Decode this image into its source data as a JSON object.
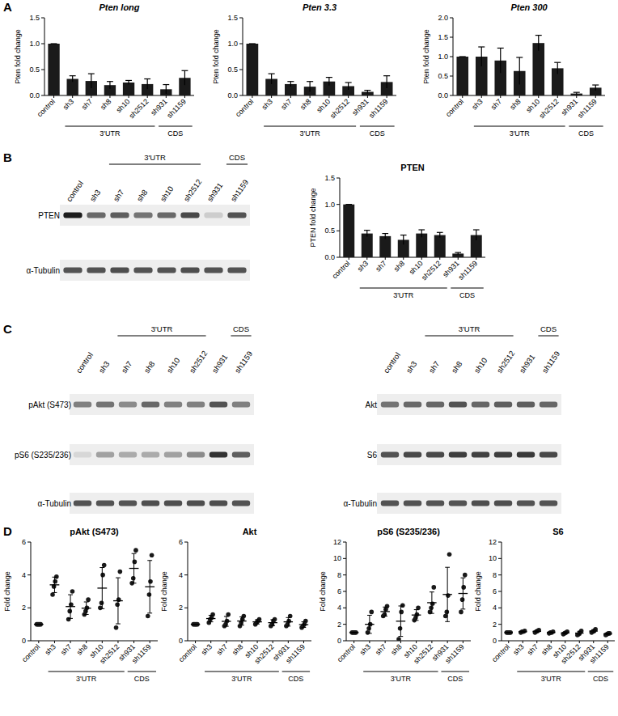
{
  "chart_data": [
    {
      "type": "bar",
      "title": "Pten long",
      "y_label": "Pten fold change",
      "categories": [
        "control",
        "sh3",
        "sh7",
        "sh8",
        "sh10",
        "sh2512",
        "sh931",
        "sh1159"
      ],
      "values": [
        1.0,
        0.32,
        0.28,
        0.2,
        0.25,
        0.22,
        0.12,
        0.34
      ],
      "error": [
        0,
        0.06,
        0.14,
        0.07,
        0.04,
        0.1,
        0.09,
        0.14
      ],
      "color": "#1a1a1a",
      "ylim": [
        0,
        1.5
      ],
      "yticks": [
        {
          "value": 0,
          "label": "0.0"
        },
        {
          "value": 0.5,
          "label": "0.5"
        },
        {
          "value": 1,
          "label": "1.0"
        },
        {
          "value": 1.5,
          "label": "1.5"
        }
      ],
      "groups": [
        {
          "label": "3'UTR",
          "from": "sh3",
          "to": "sh2512"
        },
        {
          "label": "CDS",
          "from": "sh931",
          "to": "sh1159"
        }
      ]
    },
    {
      "type": "bar",
      "title": "Pten 3.3",
      "y_label": "Pten fold change",
      "categories": [
        "control",
        "sh3",
        "sh7",
        "sh8",
        "sh10",
        "sh2512",
        "sh931",
        "sh1159"
      ],
      "values": [
        1.0,
        0.32,
        0.22,
        0.17,
        0.27,
        0.18,
        0.07,
        0.26
      ],
      "error": [
        0,
        0.1,
        0.05,
        0.1,
        0.08,
        0.07,
        0.03,
        0.12
      ],
      "color": "#1a1a1a",
      "ylim": [
        0,
        1.5
      ],
      "yticks": [
        {
          "value": 0,
          "label": "0.0"
        },
        {
          "value": 0.5,
          "label": "0.5"
        },
        {
          "value": 1,
          "label": "1.0"
        },
        {
          "value": 1.5,
          "label": "1.5"
        }
      ],
      "groups": [
        {
          "label": "3'UTR",
          "from": "sh3",
          "to": "sh2512"
        },
        {
          "label": "CDS",
          "from": "sh931",
          "to": "sh1159"
        }
      ]
    },
    {
      "type": "bar",
      "title": "Pten 300",
      "y_label": "Pten fold change",
      "categories": [
        "control",
        "sh3",
        "sh7",
        "sh8",
        "sh10",
        "sh2512",
        "sh931",
        "sh1159"
      ],
      "values": [
        1.0,
        1.0,
        0.9,
        0.63,
        1.35,
        0.7,
        0.05,
        0.2
      ],
      "error": [
        0,
        0.25,
        0.32,
        0.35,
        0.2,
        0.15,
        0.03,
        0.07
      ],
      "color": "#1a1a1a",
      "ylim": [
        0,
        2
      ],
      "yticks": [
        {
          "value": 0,
          "label": "0.0"
        },
        {
          "value": 0.5,
          "label": "0.5"
        },
        {
          "value": 1,
          "label": "1.0"
        },
        {
          "value": 1.5,
          "label": "1.5"
        },
        {
          "value": 2,
          "label": "2.0"
        }
      ],
      "groups": [
        {
          "label": "3'UTR",
          "from": "sh3",
          "to": "sh2512"
        },
        {
          "label": "CDS",
          "from": "sh931",
          "to": "sh1159"
        }
      ]
    },
    {
      "type": "bar",
      "title": "PTEN",
      "y_label": "PTEN fold change",
      "categories": [
        "control",
        "sh3",
        "sh7",
        "sh8",
        "sh10",
        "sh2512",
        "sh931",
        "sh1159"
      ],
      "values": [
        1.0,
        0.45,
        0.4,
        0.33,
        0.45,
        0.42,
        0.07,
        0.42
      ],
      "error": [
        0,
        0.06,
        0.05,
        0.09,
        0.07,
        0.05,
        0.02,
        0.1
      ],
      "color": "#1a1a1a",
      "ylim": [
        0,
        1.5
      ],
      "yticks": [
        {
          "value": 0,
          "label": "0.0"
        },
        {
          "value": 0.5,
          "label": "0.5"
        },
        {
          "value": 1,
          "label": "1.0"
        },
        {
          "value": 1.5,
          "label": "1.5"
        }
      ],
      "groups": [
        {
          "label": "3'UTR",
          "from": "sh3",
          "to": "sh2512"
        },
        {
          "label": "CDS",
          "from": "sh931",
          "to": "sh1159"
        }
      ]
    },
    {
      "type": "dot",
      "title": "pAkt (S473)",
      "y_label": "Fold change",
      "categories": [
        "control",
        "sh3",
        "sh7",
        "sh8",
        "sh10",
        "sh2512",
        "sh931",
        "sh1159"
      ],
      "points": [
        [
          1,
          1,
          1,
          1
        ],
        [
          2.8,
          3.3,
          3.6,
          3.9
        ],
        [
          1.3,
          1.8,
          2.2,
          3.0
        ],
        [
          1.6,
          1.8,
          2.0,
          2.5
        ],
        [
          2.0,
          2.3,
          4.0,
          4.6
        ],
        [
          0.8,
          2.2,
          2.5,
          4.2
        ],
        [
          3.5,
          3.8,
          4.8,
          5.5
        ],
        [
          1.5,
          2.8,
          3.6,
          5.2
        ]
      ],
      "mean": [
        1,
        3.4,
        2.08,
        1.98,
        3.2,
        2.43,
        4.4,
        3.28
      ],
      "error": [
        0,
        0.47,
        0.72,
        0.38,
        1.25,
        1.4,
        0.9,
        1.6
      ],
      "color": "#1a1a1a",
      "ylim": [
        0,
        6
      ],
      "yticks": [
        0,
        2,
        4,
        6
      ],
      "groups": [
        {
          "label": "3'UTR",
          "from": "sh3",
          "to": "sh2512"
        },
        {
          "label": "CDS",
          "from": "sh931",
          "to": "sh1159"
        }
      ]
    },
    {
      "type": "dot",
      "title": "Akt",
      "y_label": "Fold change",
      "categories": [
        "control",
        "sh3",
        "sh7",
        "sh8",
        "sh10",
        "sh2512",
        "sh931",
        "sh1159"
      ],
      "points": [
        [
          1,
          1,
          1,
          1
        ],
        [
          1.1,
          1.3,
          1.4,
          1.6
        ],
        [
          0.9,
          1.0,
          1.2,
          1.6
        ],
        [
          0.9,
          1.1,
          1.3,
          1.5
        ],
        [
          1.0,
          1.1,
          1.2,
          1.3
        ],
        [
          0.9,
          1.0,
          1.2,
          1.3
        ],
        [
          0.9,
          1.0,
          1.2,
          1.5
        ],
        [
          0.8,
          0.9,
          1.0,
          1.2
        ]
      ],
      "mean": [
        1,
        1.35,
        1.18,
        1.2,
        1.15,
        1.1,
        1.15,
        0.98
      ],
      "error": [
        0,
        0.2,
        0.3,
        0.25,
        0.13,
        0.18,
        0.26,
        0.17
      ],
      "color": "#1a1a1a",
      "ylim": [
        0,
        6
      ],
      "yticks": [
        0,
        2,
        4,
        6
      ],
      "groups": [
        {
          "label": "3'UTR",
          "from": "sh3",
          "to": "sh2512"
        },
        {
          "label": "CDS",
          "from": "sh931",
          "to": "sh1159"
        }
      ]
    },
    {
      "type": "dot",
      "title": "pS6 (S235/236)",
      "y_label": "Fold change",
      "categories": [
        "control",
        "sh3",
        "sh7",
        "sh8",
        "sh10",
        "sh2512",
        "sh931",
        "sh1159"
      ],
      "points": [
        [
          1,
          1,
          1,
          1
        ],
        [
          1.0,
          1.5,
          2.0,
          3.5
        ],
        [
          3.0,
          3.2,
          3.8,
          4.2
        ],
        [
          0.2,
          1.5,
          3.5,
          4.3
        ],
        [
          2.5,
          2.8,
          3.2,
          4.0
        ],
        [
          3.5,
          4.0,
          4.5,
          6.5
        ],
        [
          3.0,
          3.5,
          5.5,
          10.5
        ],
        [
          3.5,
          5.0,
          6.5,
          8.0
        ]
      ],
      "mean": [
        1,
        2.0,
        3.55,
        2.38,
        3.13,
        4.63,
        5.63,
        5.75
      ],
      "error": [
        0,
        1.1,
        0.55,
        1.85,
        0.65,
        1.3,
        3.3,
        1.9
      ],
      "color": "#1a1a1a",
      "ylim": [
        0,
        12
      ],
      "yticks": [
        0,
        2,
        4,
        6,
        8,
        10,
        12
      ],
      "groups": [
        {
          "label": "3'UTR",
          "from": "sh3",
          "to": "sh2512"
        },
        {
          "label": "CDS",
          "from": "sh931",
          "to": "sh1159"
        }
      ]
    },
    {
      "type": "dot",
      "title": "S6",
      "y_label": "Fold change",
      "categories": [
        "control",
        "sh3",
        "sh7",
        "sh8",
        "sh10",
        "sh2512",
        "sh931",
        "sh1159"
      ],
      "points": [
        [
          1,
          1,
          1,
          1
        ],
        [
          1.0,
          1.1,
          1.1,
          1.2
        ],
        [
          1.0,
          1.1,
          1.2,
          1.3
        ],
        [
          0.9,
          1.0,
          1.0,
          1.1
        ],
        [
          0.8,
          0.9,
          1.0,
          1.1
        ],
        [
          0.7,
          0.8,
          1.0,
          1.2
        ],
        [
          1.0,
          1.1,
          1.2,
          1.4
        ],
        [
          0.7,
          0.8,
          0.9,
          0.9
        ]
      ],
      "mean": [
        1,
        1.1,
        1.15,
        1.0,
        0.95,
        0.93,
        1.18,
        0.83
      ],
      "error": [
        0,
        0.08,
        0.13,
        0.08,
        0.13,
        0.22,
        0.17,
        0.1
      ],
      "color": "#1a1a1a",
      "ylim": [
        0,
        12
      ],
      "yticks": [
        0,
        2,
        4,
        6,
        8,
        10,
        12
      ],
      "groups": [
        {
          "label": "3'UTR",
          "from": "sh3",
          "to": "sh2512"
        },
        {
          "label": "CDS",
          "from": "sh931",
          "to": "sh1159"
        }
      ]
    }
  ],
  "panel_labels": [
    "A",
    "B",
    "C",
    "D"
  ],
  "blots": [
    {
      "lanes": [
        "control",
        "sh3",
        "sh7",
        "sh8",
        "sh10",
        "sh2512",
        "sh931",
        "sh1159"
      ],
      "groups": [
        {
          "label": "3'UTR",
          "from": "sh7",
          "to": "sh2512"
        },
        {
          "label": "CDS",
          "from": "sh1159",
          "to": "sh1159"
        }
      ],
      "rows": [
        {
          "label": "PTEN",
          "bands": [
            0.95,
            0.6,
            0.65,
            0.55,
            0.6,
            0.75,
            0.15,
            0.7
          ]
        },
        {
          "label": "α-Tubulin",
          "bands": [
            0.7,
            0.7,
            0.72,
            0.7,
            0.7,
            0.72,
            0.7,
            0.7
          ]
        }
      ]
    },
    {
      "lanes": [
        "control",
        "sh3",
        "sh7",
        "sh8",
        "sh10",
        "sh2512",
        "sh931",
        "sh1159"
      ],
      "groups": [
        {
          "label": "3'UTR",
          "from": "sh7",
          "to": "sh2512"
        },
        {
          "label": "CDS",
          "from": "sh1159",
          "to": "sh1159"
        }
      ],
      "rows": [
        {
          "label": "pAkt (S473)",
          "bands": [
            0.5,
            0.55,
            0.45,
            0.6,
            0.5,
            0.5,
            0.7,
            0.5
          ]
        },
        {
          "label": "pS6 (S235/236)",
          "bands": [
            0.1,
            0.35,
            0.3,
            0.3,
            0.35,
            0.45,
            0.85,
            0.65
          ]
        },
        {
          "label": "α-Tubulin",
          "bands": [
            0.7,
            0.7,
            0.7,
            0.72,
            0.72,
            0.72,
            0.72,
            0.7
          ]
        }
      ]
    },
    {
      "lanes": [
        "control",
        "sh3",
        "sh7",
        "sh8",
        "sh10",
        "sh2512",
        "sh931",
        "sh1159"
      ],
      "groups": [
        {
          "label": "3'UTR",
          "from": "sh7",
          "to": "sh2512"
        },
        {
          "label": "CDS",
          "from": "sh1159",
          "to": "sh1159"
        }
      ],
      "rows": [
        {
          "label": "Akt",
          "bands": [
            0.55,
            0.6,
            0.62,
            0.7,
            0.62,
            0.65,
            0.65,
            0.62
          ]
        },
        {
          "label": "S6",
          "bands": [
            0.7,
            0.75,
            0.75,
            0.8,
            0.78,
            0.8,
            0.82,
            0.75
          ]
        },
        {
          "label": "α-Tubulin",
          "bands": [
            0.7,
            0.7,
            0.7,
            0.7,
            0.72,
            0.72,
            0.7,
            0.7
          ]
        }
      ]
    }
  ]
}
